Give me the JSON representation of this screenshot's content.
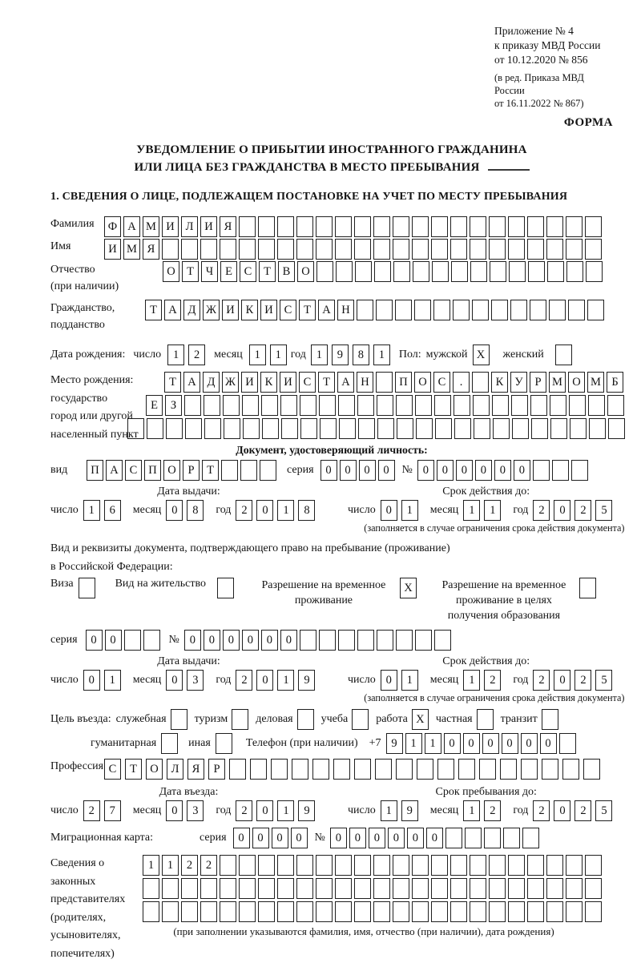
{
  "meta": {
    "lines": [
      "Приложение № 4",
      "к приказу МВД России",
      "от 10.12.2020 № 856"
    ],
    "amendment": [
      "(в ред. Приказа МВД России",
      "от 16.11.2022 № 867)"
    ],
    "form_label": "ФОРМА"
  },
  "title": {
    "line1": "УВЕДОМЛЕНИЕ О ПРИБЫТИИ ИНОСТРАННОГО ГРАЖДАНИНА",
    "line2": "ИЛИ ЛИЦА БЕЗ ГРАЖДАНСТВА В МЕСТО ПРЕБЫВАНИЯ"
  },
  "section1_heading": "1. СВЕДЕНИЯ О ЛИЦЕ, ПОДЛЕЖАЩЕМ ПОСТАНОВКЕ НА УЧЕТ ПО МЕСТУ ПРЕБЫВАНИЯ",
  "labels": {
    "surname": "Фамилия",
    "name": "Имя",
    "patronymic": [
      "Отчество",
      "(при наличии)"
    ],
    "citizenship": [
      "Гражданство,",
      "подданство"
    ],
    "birth_date": "Дата рождения:",
    "day": "число",
    "month": "месяц",
    "year": "год",
    "sex": "Пол:",
    "male": "мужской",
    "female": "женский",
    "birth_place": [
      "Место рождения:",
      "государство",
      "город или другой",
      "населенный пункт"
    ],
    "identity_doc_heading": "Документ, удостоверяющий личность:",
    "kind": "вид",
    "series": "серия",
    "number": "№",
    "issue_date": "Дата выдачи:",
    "valid_until": "Срок действия до:",
    "valid_note": "(заполняется в случае ограничения срока действия документа)",
    "residence_doc_line1": "Вид и реквизиты документа, подтверждающего право на пребывание (проживание)",
    "residence_doc_line2": "в Российской Федерации:",
    "visa": "Виза",
    "residence_permit": "Вид на жительство",
    "temp_residence": [
      "Разрешение на временное",
      "проживание"
    ],
    "temp_residence_edu": [
      "Разрешение на временное",
      "проживание в целях",
      "получения образования"
    ],
    "entry_purpose": "Цель въезда:",
    "purpose_official": "служебная",
    "purpose_tourism": "туризм",
    "purpose_business": "деловая",
    "purpose_study": "учеба",
    "purpose_work": "работа",
    "purpose_private": "частная",
    "purpose_transit": "транзит",
    "purpose_humanitarian": "гуманитарная",
    "purpose_other": "иная",
    "phone": "Телефон (при наличии)",
    "phone_prefix": "+7",
    "profession": "Профессия",
    "entry_date": "Дата въезда:",
    "stay_until": "Срок пребывания до:",
    "migration_card": "Миграционная карта:",
    "representatives": [
      "Сведения о",
      "законных",
      "представителях",
      "(родителях,",
      "усыновителях,",
      "попечителях)"
    ],
    "representatives_note": "(при заполнении указываются фамилия, имя, отчество (при наличии), дата рождения)"
  },
  "values": {
    "surname": {
      "value": "ФАМИЛИЯ",
      "count": 26
    },
    "name": {
      "value": "ИМЯ",
      "count": 26
    },
    "patronymic": {
      "value": "ОТЧЕСТВО",
      "count": 23
    },
    "citizenship": {
      "value": "ТАДЖИКИСТАН",
      "count": 24
    },
    "birth_day": "12",
    "birth_month": "11",
    "birth_year": "1981",
    "sex_male_x": "X",
    "sex_female_x": "",
    "birth_place_row1": {
      "value": "ТАДЖИКИСТАН ПОС. КУРМОМБ",
      "count": 24
    },
    "birth_place_row2": {
      "value": "ЕЗ",
      "count": 25
    },
    "birth_place_row3": {
      "value": "",
      "count": 26
    },
    "id_kind": {
      "value": "ПАСПОРТ",
      "count": 10
    },
    "id_series": {
      "value": "0000",
      "count": 4
    },
    "id_number": {
      "value": "000000",
      "count": 9
    },
    "id_issue_day": "16",
    "id_issue_month": "08",
    "id_issue_year": "2018",
    "id_valid_day": "01",
    "id_valid_month": "11",
    "id_valid_year": "2025",
    "visa_x": "",
    "residence_permit_x": "",
    "temp_residence_x": "X",
    "temp_residence_edu_x": "",
    "permit_series": {
      "value": "00",
      "count": 4
    },
    "permit_number": {
      "value": "000000",
      "count": 14
    },
    "permit_issue_day": "01",
    "permit_issue_month": "03",
    "permit_issue_year": "2019",
    "permit_valid_day": "01",
    "permit_valid_month": "12",
    "permit_valid_year": "2025",
    "official_x": "",
    "tourism_x": "",
    "business_x": "",
    "study_x": "",
    "work_x": "X",
    "private_x": "",
    "transit_x": "",
    "humanitarian_x": "",
    "other_x": "",
    "phone": {
      "value": "911000000",
      "count": 10
    },
    "profession": {
      "value": "СТОЛЯР",
      "count": 24
    },
    "entry_day": "27",
    "entry_month": "03",
    "entry_year": "2019",
    "stay_day": "19",
    "stay_month": "12",
    "stay_year": "2025",
    "mig_series": {
      "value": "0000",
      "count": 4
    },
    "mig_number": {
      "value": "000000",
      "count": 11
    },
    "rep_row1": {
      "value": "1122",
      "count": 24
    },
    "rep_row2": {
      "value": "",
      "count": 24
    },
    "rep_row3": {
      "value": "",
      "count": 24
    }
  }
}
